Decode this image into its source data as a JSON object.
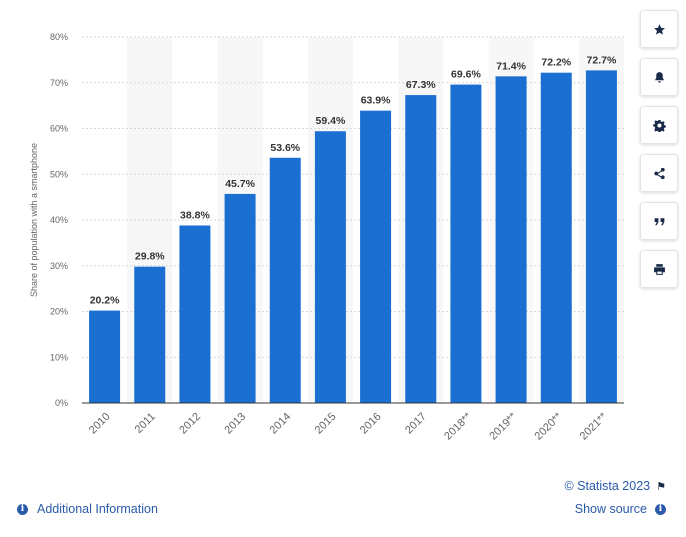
{
  "chart_data": {
    "type": "bar",
    "categories": [
      "2010",
      "2011",
      "2012",
      "2013",
      "2014",
      "2015",
      "2016",
      "2017",
      "2018**",
      "2019**",
      "2020**",
      "2021**"
    ],
    "values": [
      20.2,
      29.8,
      38.8,
      45.7,
      53.6,
      59.4,
      63.9,
      67.3,
      69.6,
      71.4,
      72.2,
      72.7
    ],
    "value_labels": [
      "20.2%",
      "29.8%",
      "38.8%",
      "45.7%",
      "53.6%",
      "59.4%",
      "63.9%",
      "67.3%",
      "69.6%",
      "71.4%",
      "72.2%",
      "72.7%"
    ],
    "ylabel": "Share of population with a smartphone",
    "ylim": [
      0,
      80
    ],
    "yticks": [
      0,
      10,
      20,
      30,
      40,
      50,
      60,
      70,
      80
    ],
    "ytick_labels": [
      "0%",
      "10%",
      "20%",
      "30%",
      "40%",
      "50%",
      "60%",
      "70%",
      "80%"
    ],
    "grid": true,
    "bar_color": "#1a6fd0"
  },
  "toolbar": {
    "buttons": [
      {
        "name": "favorite-button",
        "icon": "star-icon"
      },
      {
        "name": "notification-button",
        "icon": "bell-icon"
      },
      {
        "name": "settings-button",
        "icon": "gear-icon"
      },
      {
        "name": "share-button",
        "icon": "share-icon"
      },
      {
        "name": "cite-button",
        "icon": "quote-icon"
      },
      {
        "name": "print-button",
        "icon": "print-icon"
      }
    ]
  },
  "footer": {
    "copyright": "© Statista 2023",
    "show_source": "Show source",
    "additional_info": "Additional Information"
  }
}
